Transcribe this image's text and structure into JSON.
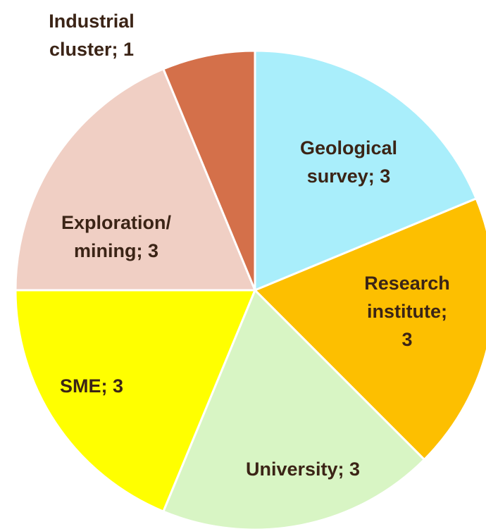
{
  "chart_data": {
    "type": "pie",
    "categories": [
      "Geological survey",
      "Research institute",
      "University",
      "SME",
      "Exploration/mining",
      "Industrial cluster"
    ],
    "values": [
      3,
      3,
      3,
      3,
      3,
      1
    ],
    "value_labels": [
      "Geological\nsurvey; 3",
      "Research\ninstitute; 3",
      "University; 3",
      "SME; 3",
      "Exploration/\nmining; 3",
      "Industrial\ncluster; 1"
    ],
    "colors": [
      "#a9eefb",
      "#fdbf00",
      "#d8f5c4",
      "#ffff00",
      "#f0cfc4",
      "#d4704a"
    ]
  }
}
